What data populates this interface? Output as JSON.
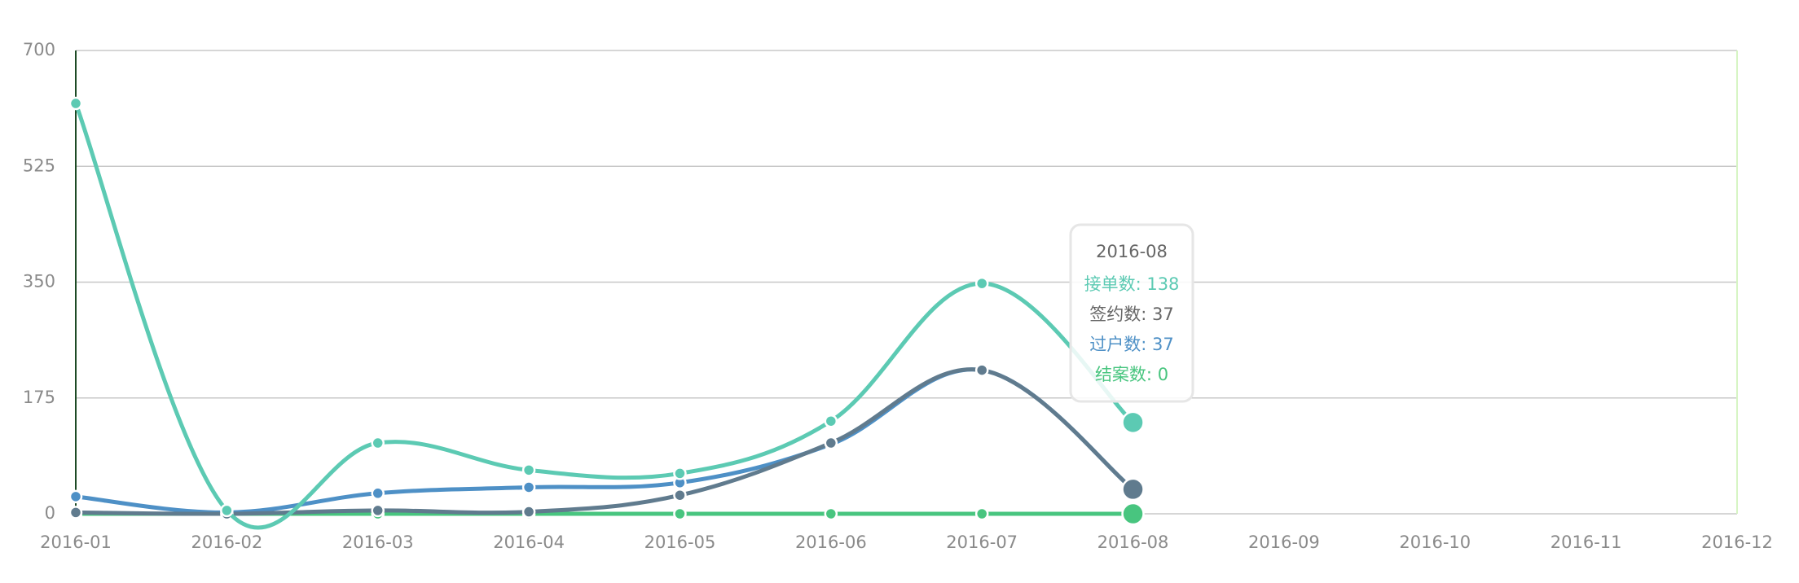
{
  "chart_data": {
    "type": "line",
    "categories": [
      "2016-01",
      "2016-02",
      "2016-03",
      "2016-04",
      "2016-05",
      "2016-06",
      "2016-07",
      "2016-08",
      "2016-09",
      "2016-10",
      "2016-11",
      "2016-12"
    ],
    "series": [
      {
        "name": "接单数",
        "color": "#5ccab3",
        "values": [
          620,
          5,
          107,
          66,
          61,
          140,
          348,
          138,
          null,
          null,
          null,
          null
        ]
      },
      {
        "name": "签约数",
        "color": "#607b8e",
        "values": [
          2,
          0,
          5,
          3,
          28,
          107,
          217,
          37,
          null,
          null,
          null,
          null
        ]
      },
      {
        "name": "过户数",
        "color": "#4e90c6",
        "values": [
          26,
          2,
          31,
          40,
          47,
          105,
          217,
          37,
          null,
          null,
          null,
          null
        ]
      },
      {
        "name": "结案数",
        "color": "#48c57f",
        "values": [
          0,
          0,
          0,
          0,
          0,
          0,
          0,
          0,
          null,
          null,
          null,
          null
        ]
      }
    ],
    "ylim": [
      0,
      700
    ],
    "yticks": [
      0,
      175,
      350,
      525,
      700
    ],
    "grid": true,
    "tooltip": {
      "title": "2016-08",
      "lines": [
        "接单数: 138",
        "签约数: 37",
        "过户数: 37",
        "结案数: 0"
      ]
    }
  }
}
